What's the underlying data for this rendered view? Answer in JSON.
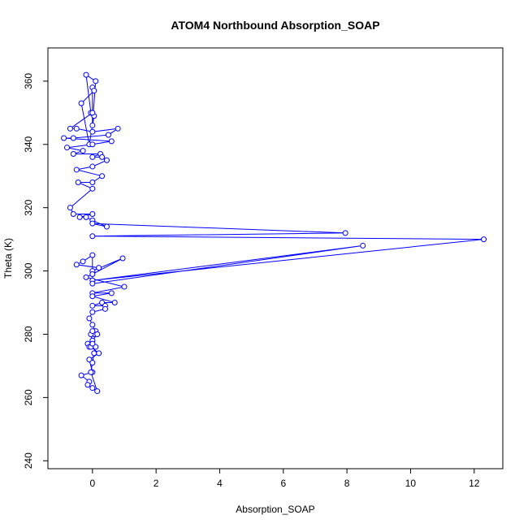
{
  "chart_data": {
    "type": "line",
    "title": "ATOM4 Northbound Absorption_SOAP",
    "xlabel": "Absorption_SOAP",
    "ylabel": "Theta (K)",
    "xlim": [
      -1.4,
      12.9
    ],
    "ylim": [
      237.5,
      370.5
    ],
    "xticks": [
      0,
      2,
      4,
      6,
      8,
      10,
      12
    ],
    "yticks": [
      240,
      260,
      280,
      300,
      320,
      340,
      360
    ],
    "xtick_labels": [
      "0",
      "2",
      "4",
      "6",
      "8",
      "10",
      "12"
    ],
    "ytick_labels": [
      "240",
      "260",
      "280",
      "300",
      "320",
      "340",
      "360"
    ],
    "grid": false,
    "series": [
      {
        "color": "#0000ff",
        "marker": "open-circle",
        "x": [
          -0.05,
          -0.2,
          0.1,
          0.0,
          0.0,
          0.05,
          -0.35,
          -0.1,
          0.05,
          0.0,
          -0.7,
          -0.5,
          0.0,
          0.8,
          0.5,
          -0.6,
          -0.9,
          0.6,
          0.0,
          -0.8,
          -0.3,
          -0.6,
          0.25,
          0.0,
          0.3,
          0.45,
          0.0,
          -0.5,
          0.3,
          0.0,
          -0.45,
          0.0,
          -0.7,
          -0.6,
          0.0,
          -0.4,
          -0.2,
          0.0,
          0.45,
          0.0,
          7.95,
          0.0,
          12.3,
          0.0,
          8.5,
          0.0,
          0.0,
          -0.3,
          -0.5,
          0.2,
          0.0,
          0.95,
          0.0,
          -0.2,
          1.0,
          0.0,
          0.6,
          0.0,
          0.7,
          0.3,
          0.0,
          0.4,
          0.4,
          0.0,
          -0.1,
          0.0,
          0.1,
          0.05,
          0.15,
          0.0,
          -0.15,
          -0.1,
          -0.05,
          0.2,
          -0.1,
          0.0,
          -0.35,
          -0.1,
          -0.15,
          0.0,
          0.15,
          -0.05,
          0.0,
          0.05,
          0.1,
          0.0,
          -0.05,
          0.0
        ],
        "y": [
          350,
          362,
          360,
          346,
          358,
          357,
          353,
          340,
          349,
          350,
          345,
          345,
          344,
          345,
          343,
          342,
          342,
          341,
          340,
          339,
          338,
          337,
          337,
          336,
          336,
          335,
          333,
          332,
          330,
          328,
          328,
          326,
          320,
          318,
          318,
          317,
          317,
          316,
          314,
          315,
          312,
          311,
          310,
          297,
          308,
          296,
          305,
          303,
          302,
          301,
          300,
          304,
          299,
          298,
          295,
          293,
          293,
          292,
          290,
          290,
          289,
          289,
          288,
          287,
          285,
          283,
          281,
          280,
          280,
          278,
          277,
          276,
          276,
          274,
          272,
          268,
          267,
          265,
          264,
          263,
          262,
          268,
          271,
          274,
          276,
          277,
          280,
          281
        ]
      }
    ]
  }
}
